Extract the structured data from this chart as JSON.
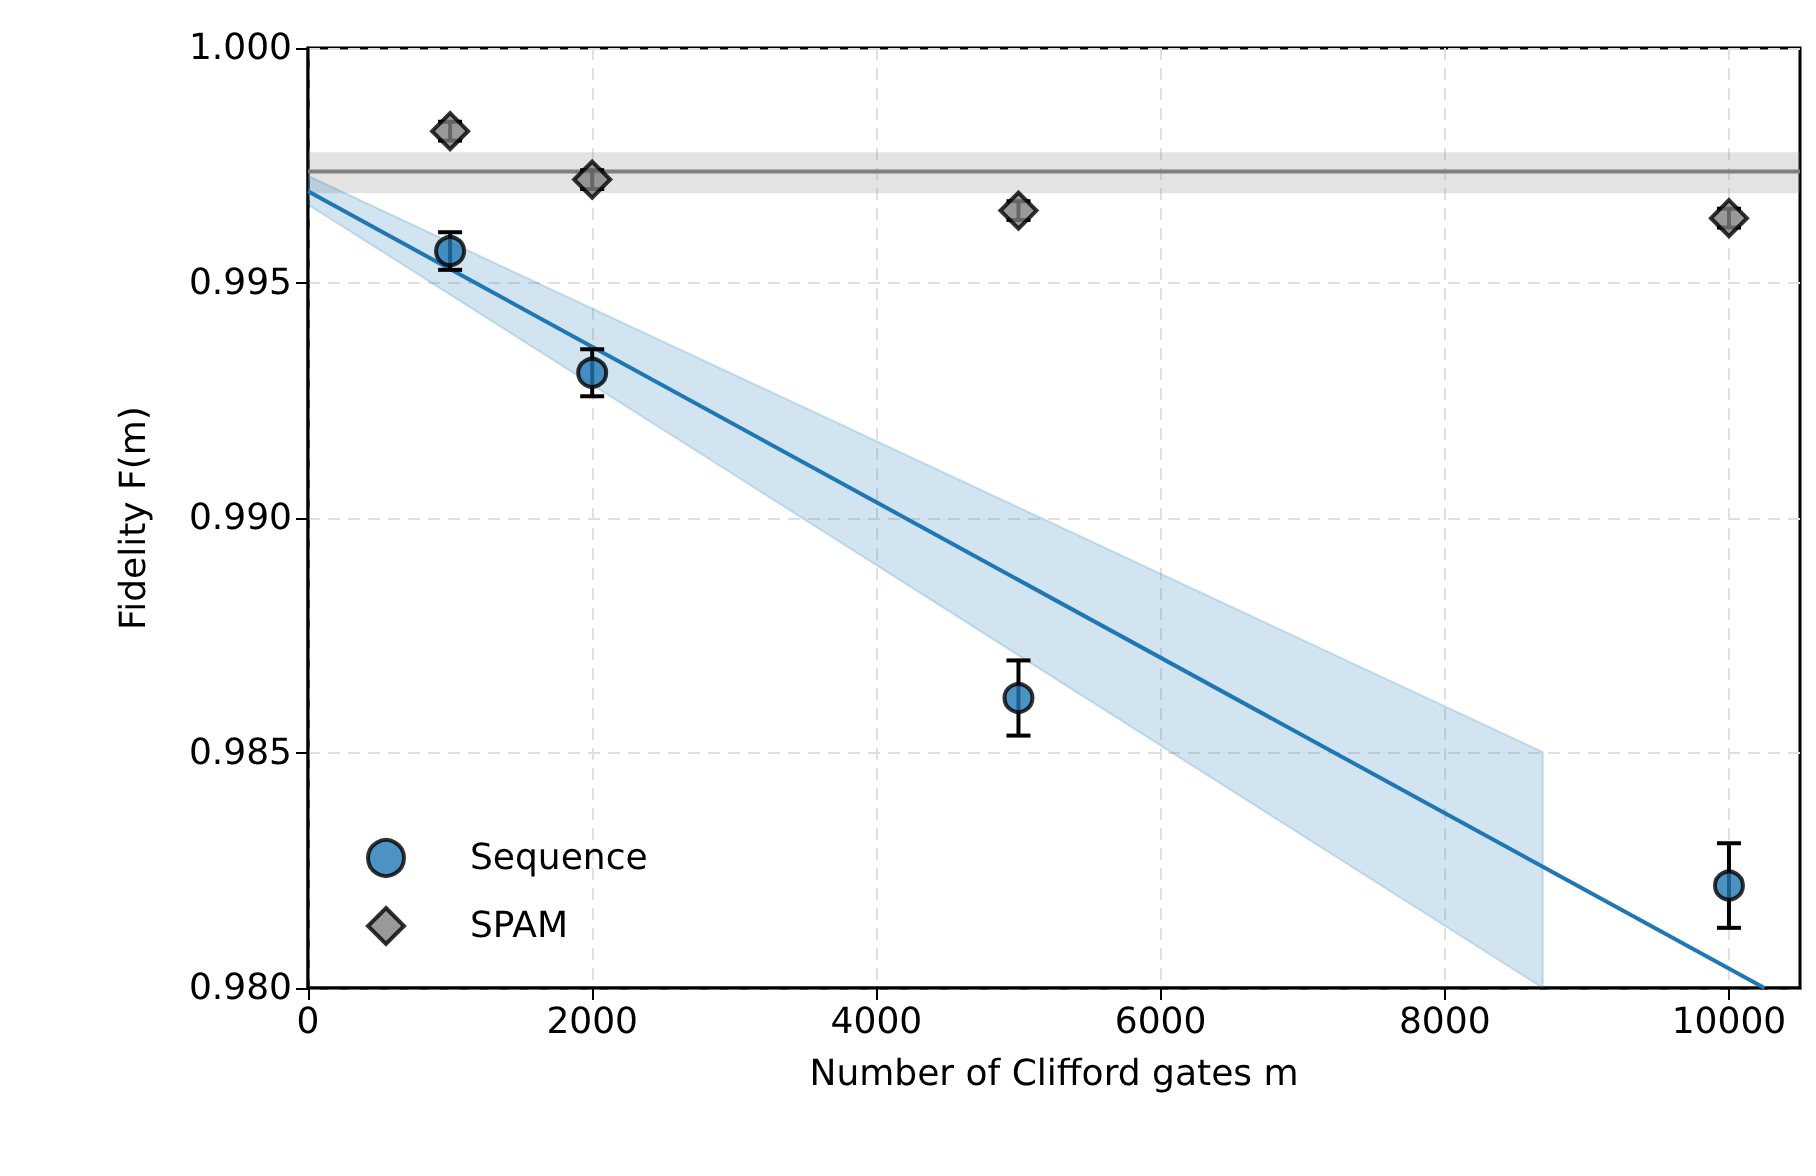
{
  "chart_data": {
    "type": "scatter",
    "xlabel": "Number of Clifford gates m",
    "ylabel": "Fidelity F(m)",
    "xlim": [
      0,
      10500
    ],
    "xticks": [
      0,
      2000,
      4000,
      6000,
      8000,
      10000
    ],
    "ylim": [
      0.98,
      1.0
    ],
    "yticks": [
      {
        "value": 0.98,
        "label": "0.980"
      },
      0.985,
      {
        "value": 0.99,
        "label": "0.990"
      },
      0.995,
      {
        "value": 1.0,
        "label": "1.000"
      }
    ],
    "grid": true,
    "legend": "bottom left",
    "bands": [
      {
        "axis": "y",
        "from": 0.99691,
        "to": 0.99778,
        "color": "#808080"
      }
    ],
    "ref_lines": [
      {
        "axis": "y",
        "value": 0.99737,
        "color": "#808080"
      }
    ],
    "series": [
      {
        "type": "line",
        "color": "#1f77b4",
        "marker": "none",
        "x": [
          0,
          8690,
          10250
        ],
        "values": [
          0.99695,
          0.98258,
          0.98
        ],
        "lower": [
          0.99667,
          0.98,
          null
        ],
        "upper": [
          0.99728,
          0.98502,
          null
        ]
      },
      {
        "name": "Sequence",
        "marker": "circle",
        "color": "#1f77b4",
        "x": [
          1000,
          2000,
          5000,
          10000
        ],
        "values": [
          0.99568,
          0.99309,
          0.98617,
          0.98218
        ],
        "errors": [
          0.0004,
          0.0005,
          0.0008,
          0.0009
        ]
      },
      {
        "name": "SPAM",
        "marker": "diamond",
        "color": "#808080",
        "x": [
          1000,
          2000,
          5000,
          10000
        ],
        "values": [
          0.99823,
          0.9972,
          0.99654,
          0.99638
        ],
        "errors": [
          0.0002,
          0.0002,
          0.0002,
          0.0002
        ]
      }
    ]
  }
}
